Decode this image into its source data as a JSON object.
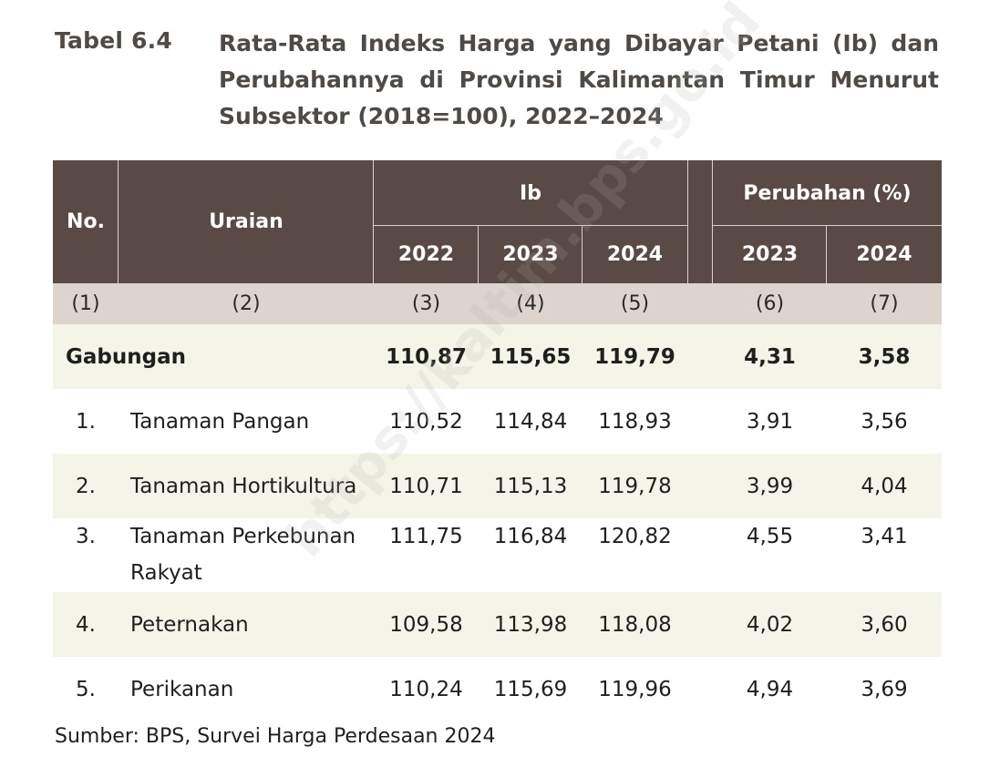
{
  "title": {
    "label": "Tabel 6.4",
    "text": "Rata-Rata Indeks Harga yang Dibayar Petani (Ib) dan Perubahannya di Provinsi Kalimantan Timur Menurut Subsektor (2018=100), 2022–2024"
  },
  "header": {
    "no": "No.",
    "uraian": "Uraian",
    "ib": "Ib",
    "perubahan": "Perubahan (%)",
    "years_ib": [
      "2022",
      "2023",
      "2024"
    ],
    "years_change": [
      "2023",
      "2024"
    ]
  },
  "index_row": [
    "(1)",
    "(2)",
    "(3)",
    "(4)",
    "(5)",
    "(6)",
    "(7)"
  ],
  "rows": [
    {
      "no": "",
      "name": "Gabungan",
      "name2": "",
      "v2022": "110,87",
      "v2023": "115,65",
      "v2024": "119,79",
      "c2023": "4,31",
      "c2024": "3,58"
    },
    {
      "no": "1.",
      "name": "Tanaman Pangan",
      "name2": "",
      "v2022": "110,52",
      "v2023": "114,84",
      "v2024": "118,93",
      "c2023": "3,91",
      "c2024": "3,56"
    },
    {
      "no": "2.",
      "name": "Tanaman Hortikultura",
      "name2": "",
      "v2022": "110,71",
      "v2023": "115,13",
      "v2024": "119,78",
      "c2023": "3,99",
      "c2024": "4,04"
    },
    {
      "no": "3.",
      "name": "Tanaman Perkebunan",
      "name2": "Rakyat",
      "v2022": "111,75",
      "v2023": "116,84",
      "v2024": "120,82",
      "c2023": "4,55",
      "c2024": "3,41"
    },
    {
      "no": "4.",
      "name": "Peternakan",
      "name2": "",
      "v2022": "109,58",
      "v2023": "113,98",
      "v2024": "118,08",
      "c2023": "4,02",
      "c2024": "3,60"
    },
    {
      "no": "5.",
      "name": "Perikanan",
      "name2": "",
      "v2022": "110,24",
      "v2023": "115,69",
      "v2024": "119,96",
      "c2023": "4,94",
      "c2024": "3,69"
    }
  ],
  "source": "Sumber: BPS, Survei Harga Perdesaan 2024",
  "watermark": "https://kaltim.bps.go.id"
}
